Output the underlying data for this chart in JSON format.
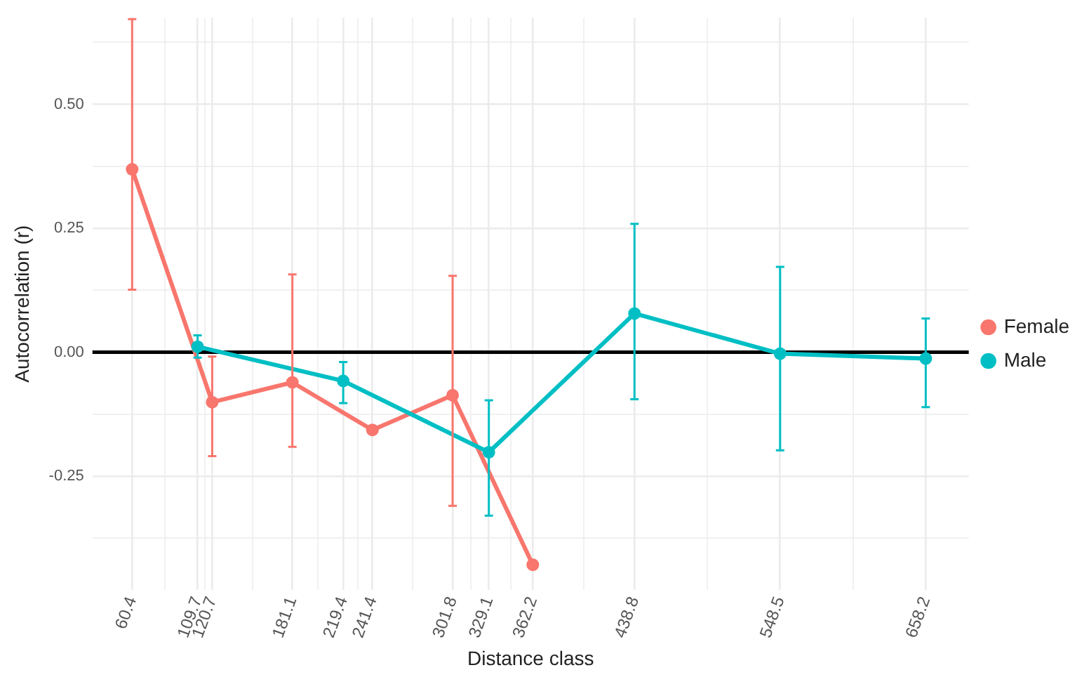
{
  "chart_data": {
    "type": "line",
    "xlabel": "Distance class",
    "ylabel": "Autocorrelation (r)",
    "xlim": [
      30.5,
      690.6
    ],
    "ylim": [
      -0.48,
      0.675
    ],
    "xticks": [
      60.4,
      {
        "value": 85.05,
        "label": null
      },
      109.7,
      {
        "value": 115.2,
        "label": null
      },
      120.7,
      {
        "value": 150.9,
        "label": null
      },
      181.1,
      {
        "value": 200.25,
        "label": null
      },
      219.4,
      {
        "value": 230.4,
        "label": null
      },
      241.4,
      {
        "value": 271.6,
        "label": null
      },
      301.8,
      {
        "value": 315.45,
        "label": null
      },
      329.1,
      {
        "value": 345.65,
        "label": null
      },
      362.2,
      {
        "value": 400.5,
        "label": null
      },
      438.8,
      {
        "value": 493.65,
        "label": null
      },
      548.5,
      {
        "value": 603.35,
        "label": null
      },
      658.2
    ],
    "yticks": [
      {
        "value": -0.375,
        "label": null
      },
      {
        "value": -0.25,
        "label": "-0.25"
      },
      {
        "value": -0.125,
        "label": null
      },
      {
        "value": 0,
        "label": "0.00"
      },
      {
        "value": 0.125,
        "label": null
      },
      {
        "value": 0.25,
        "label": "0.25"
      },
      {
        "value": 0.375,
        "label": null
      },
      {
        "value": 0.5,
        "label": "0.50"
      },
      {
        "value": 0.625,
        "label": null
      }
    ],
    "grid": true,
    "legend": "right",
    "marker": "circle",
    "line_style": "solid",
    "ref_lines": [
      {
        "axis": "y",
        "value": 0,
        "color": "#000000"
      }
    ],
    "series": [
      {
        "name": "Female",
        "color": "#f8766d",
        "x": [
          60.4,
          120.7,
          181.1,
          241.4,
          301.8,
          362.2
        ],
        "values": [
          0.369,
          -0.101,
          -0.061,
          -0.157,
          -0.087,
          -0.429
        ],
        "errors": [
          [
            0.126,
            0.672
          ],
          [
            -0.21,
            -0.009
          ],
          [
            -0.191,
            0.157
          ],
          null,
          [
            -0.31,
            0.154
          ],
          null
        ]
      },
      {
        "name": "Male",
        "color": "#00bfc4",
        "x": [
          109.7,
          219.4,
          329.1,
          438.8,
          548.5,
          658.2
        ],
        "values": [
          0.011,
          -0.058,
          -0.202,
          0.078,
          -0.003,
          -0.013
        ],
        "errors": [
          [
            -0.011,
            0.034
          ],
          [
            -0.103,
            -0.02
          ],
          [
            -0.33,
            -0.097
          ],
          [
            -0.095,
            0.259
          ],
          [
            -0.198,
            0.172
          ],
          [
            -0.111,
            0.068
          ]
        ]
      }
    ]
  }
}
